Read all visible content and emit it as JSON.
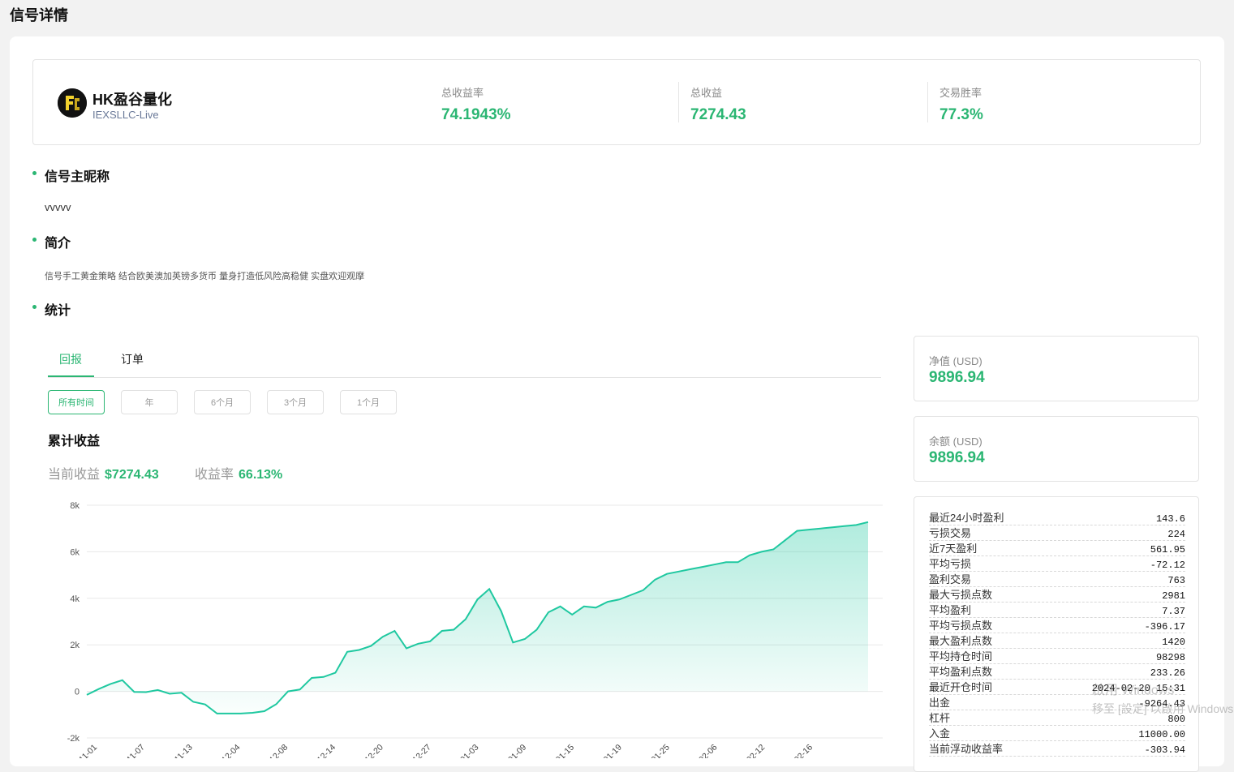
{
  "page": {
    "title": "信号详情"
  },
  "header": {
    "name": "HK盈谷量化",
    "server": "IEXSLLC-Live",
    "stats": [
      {
        "label": "总收益率",
        "value": "74.1943%"
      },
      {
        "label": "总收益",
        "value": "7274.43"
      },
      {
        "label": "交易胜率",
        "value": "77.3%"
      }
    ]
  },
  "sections": {
    "nickname_title": "信号主昵称",
    "nickname": "vvvvv",
    "intro_title": "简介",
    "intro": "信号手工黄金策略 结合欧美澳加英镑多货币 量身打造低风险高稳健 实盘欢迎观摩",
    "stats_title": "统计"
  },
  "tabs": [
    {
      "label": "回报",
      "active": true
    },
    {
      "label": "订单",
      "active": false
    }
  ],
  "ranges": [
    {
      "label": "所有时间",
      "active": true
    },
    {
      "label": "年",
      "active": false
    },
    {
      "label": "6个月",
      "active": false
    },
    {
      "label": "3个月",
      "active": false
    },
    {
      "label": "1个月",
      "active": false
    }
  ],
  "cumulative": {
    "title": "累计收益",
    "current_label": "当前收益",
    "current_value": "$7274.43",
    "rate_label": "收益率",
    "rate_value": "66.13%"
  },
  "chart_data": {
    "type": "area",
    "title": "",
    "xlabel": "",
    "ylabel": "",
    "ylim": [
      -2000,
      8000
    ],
    "yticks": [
      "8k",
      "6k",
      "4k",
      "2k",
      "0",
      "-2k"
    ],
    "ytick_values": [
      8000,
      6000,
      4000,
      2000,
      0,
      -2000
    ],
    "xticks": [
      "2023-11-01",
      "2023-11-07",
      "2023-11-13",
      "2023-12-04",
      "2023-12-08",
      "2023-12-14",
      "2023-12-20",
      "2023-12-27",
      "2024-01-03",
      "2024-01-09",
      "2024-01-15",
      "2024-01-19",
      "2024-01-25",
      "2024-02-06",
      "2024-02-12",
      "2024-02-16"
    ],
    "grid": true,
    "color": "#1fc8a0",
    "values": [
      -150,
      100,
      320,
      480,
      -20,
      -30,
      60,
      -100,
      -60,
      -450,
      -560,
      -950,
      -950,
      -950,
      -920,
      -850,
      -550,
      0,
      80,
      580,
      620,
      800,
      1700,
      1780,
      1950,
      2350,
      2600,
      1850,
      2050,
      2150,
      2600,
      2650,
      3100,
      3950,
      4400,
      3450,
      2100,
      2250,
      2650,
      3400,
      3650,
      3300,
      3650,
      3600,
      3850,
      3950,
      4150,
      4350,
      4800,
      5050,
      5150,
      5250,
      5350,
      5450,
      5550,
      5550,
      5850,
      6000,
      6100,
      6500,
      6900,
      6950,
      7000,
      7050,
      7100,
      7150,
      7274
    ]
  },
  "side": {
    "equity_label": "净值 (USD)",
    "equity_value": "9896.94",
    "balance_label": "余额 (USD)",
    "balance_value": "9896.94",
    "stats": [
      {
        "k": "最近24小时盈利",
        "v": "143.6"
      },
      {
        "k": "亏损交易",
        "v": "224"
      },
      {
        "k": "近7天盈利",
        "v": "561.95"
      },
      {
        "k": "平均亏损",
        "v": "-72.12"
      },
      {
        "k": "盈利交易",
        "v": "763"
      },
      {
        "k": "最大亏损点数",
        "v": "2981"
      },
      {
        "k": "平均盈利",
        "v": "7.37"
      },
      {
        "k": "平均亏损点数",
        "v": "-396.17"
      },
      {
        "k": "最大盈利点数",
        "v": "1420"
      },
      {
        "k": "平均持仓时间",
        "v": "98298"
      },
      {
        "k": "平均盈利点数",
        "v": "233.26"
      },
      {
        "k": "最近开仓时间",
        "v": "2024-02-20 15:31"
      },
      {
        "k": "出金",
        "v": "-9264.43"
      },
      {
        "k": "杠杆",
        "v": "800"
      },
      {
        "k": "入金",
        "v": "11000.00"
      },
      {
        "k": "当前浮动收益率",
        "v": "-303.94"
      }
    ]
  },
  "watermark": {
    "line1": "啟用 Windows",
    "line2": "移至 [設定] 以啟用 Windows"
  }
}
